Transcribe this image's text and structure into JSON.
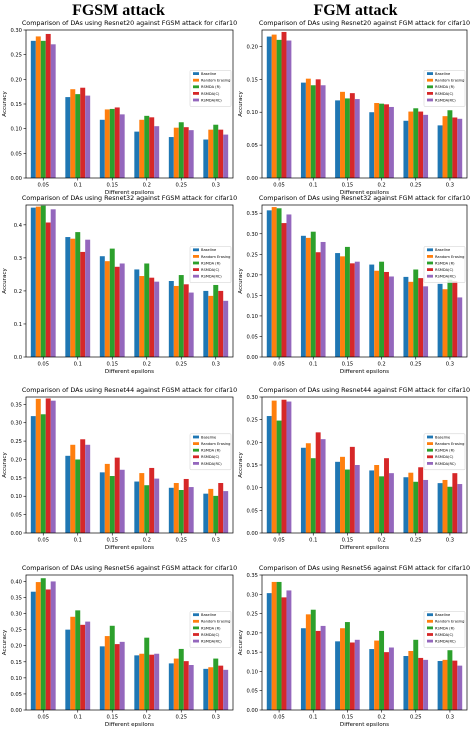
{
  "columns": [
    "FGSM attack",
    "FGM attack"
  ],
  "colors": {
    "Baseline": "#1f77b4",
    "Random Erasing": "#ff7f0e",
    "RSMDA (R)": "#2ca02c",
    "RSMDA(C)": "#d62728",
    "RSMDA(RC)": "#9467bd"
  },
  "chart_data": [
    {
      "type": "bar",
      "title": "Comparison of DAs using Resnet20 against FGSM attack for cifar10",
      "xlabel": "Different epsilons",
      "ylabel": "Accuracy",
      "categories": [
        "0.05",
        "0.1",
        "0.15",
        "0.2",
        "0.25",
        "0.3"
      ],
      "ylim": [
        0,
        0.3
      ],
      "yticks": [
        "0.00",
        "0.05",
        "0.10",
        "0.15",
        "0.20",
        "0.25",
        "0.30"
      ],
      "ytickvals": [
        0,
        0.05,
        0.1,
        0.15,
        0.2,
        0.25,
        0.3
      ],
      "legend": "right",
      "series": [
        {
          "name": "Baseline",
          "values": [
            0.278,
            0.164,
            0.118,
            0.094,
            0.083,
            0.078
          ]
        },
        {
          "name": "Random Erasing",
          "values": [
            0.287,
            0.18,
            0.139,
            0.118,
            0.102,
            0.098
          ]
        },
        {
          "name": "RSMDA (R)",
          "values": [
            0.278,
            0.17,
            0.14,
            0.126,
            0.113,
            0.108
          ]
        },
        {
          "name": "RSMDA(C)",
          "values": [
            0.292,
            0.183,
            0.143,
            0.123,
            0.103,
            0.098
          ]
        },
        {
          "name": "RSMDA(RC)",
          "values": [
            0.271,
            0.167,
            0.129,
            0.105,
            0.097,
            0.088
          ]
        }
      ]
    },
    {
      "type": "bar",
      "title": "Comparison of DAs using Resnet20 against FGM attack for cifar10",
      "xlabel": "Different epsilons",
      "ylabel": "Accuracy",
      "categories": [
        "0.05",
        "0.1",
        "0.15",
        "0.2",
        "0.25",
        "0.3"
      ],
      "ylim": [
        0,
        0.225
      ],
      "yticks": [
        "0.00",
        "0.05",
        "0.10",
        "0.15",
        "0.20"
      ],
      "ytickvals": [
        0,
        0.05,
        0.1,
        0.15,
        0.2
      ],
      "legend": "right",
      "series": [
        {
          "name": "Baseline",
          "values": [
            0.215,
            0.145,
            0.118,
            0.1,
            0.087,
            0.08
          ]
        },
        {
          "name": "Random Erasing",
          "values": [
            0.218,
            0.151,
            0.131,
            0.114,
            0.101,
            0.094
          ]
        },
        {
          "name": "RSMDA (R)",
          "values": [
            0.21,
            0.141,
            0.121,
            0.113,
            0.106,
            0.103
          ]
        },
        {
          "name": "RSMDA(C)",
          "values": [
            0.222,
            0.15,
            0.129,
            0.112,
            0.101,
            0.092
          ]
        },
        {
          "name": "RSMDA(RC)",
          "values": [
            0.209,
            0.141,
            0.12,
            0.108,
            0.096,
            0.09
          ]
        }
      ]
    },
    {
      "type": "bar",
      "title": "Comparison of DAs using Resnet32 against FGSM attack for cifar10",
      "xlabel": "Different epsilons",
      "ylabel": "Accuracy",
      "categories": [
        "0.05",
        "0.1",
        "0.15",
        "0.2",
        "0.25",
        "0.3"
      ],
      "ylim": [
        0,
        0.46
      ],
      "yticks": [
        "0.0",
        "0.1",
        "0.2",
        "0.3",
        "0.4"
      ],
      "ytickvals": [
        0,
        0.1,
        0.2,
        0.3,
        0.4
      ],
      "legend": "right",
      "series": [
        {
          "name": "Baseline",
          "values": [
            0.452,
            0.363,
            0.305,
            0.265,
            0.23,
            0.2
          ]
        },
        {
          "name": "Random Erasing",
          "values": [
            0.455,
            0.358,
            0.29,
            0.245,
            0.215,
            0.185
          ]
        },
        {
          "name": "RSMDA (R)",
          "values": [
            0.458,
            0.378,
            0.328,
            0.283,
            0.248,
            0.218
          ]
        },
        {
          "name": "RSMDA(C)",
          "values": [
            0.407,
            0.318,
            0.273,
            0.24,
            0.22,
            0.2
          ]
        },
        {
          "name": "RSMDA(RC)",
          "values": [
            0.447,
            0.355,
            0.283,
            0.228,
            0.195,
            0.17
          ]
        }
      ]
    },
    {
      "type": "bar",
      "title": "Comparison of DAs using Resnet32 against FGM attack for cifar10",
      "xlabel": "Different epsilons",
      "ylabel": "Accuracy",
      "categories": [
        "0.05",
        "0.1",
        "0.15",
        "0.2",
        "0.25",
        "0.3"
      ],
      "ylim": [
        0,
        0.37
      ],
      "yticks": [
        "0.00",
        "0.05",
        "0.10",
        "0.15",
        "0.20",
        "0.25",
        "0.30",
        "0.35"
      ],
      "ytickvals": [
        0,
        0.05,
        0.1,
        0.15,
        0.2,
        0.25,
        0.3,
        0.35
      ],
      "legend": "right",
      "series": [
        {
          "name": "Baseline",
          "values": [
            0.357,
            0.295,
            0.253,
            0.225,
            0.195,
            0.178
          ]
        },
        {
          "name": "Random Erasing",
          "values": [
            0.365,
            0.29,
            0.245,
            0.21,
            0.183,
            0.165
          ]
        },
        {
          "name": "RSMDA (R)",
          "values": [
            0.362,
            0.305,
            0.268,
            0.232,
            0.213,
            0.188
          ]
        },
        {
          "name": "RSMDA(C)",
          "values": [
            0.326,
            0.255,
            0.228,
            0.207,
            0.192,
            0.185
          ]
        },
        {
          "name": "RSMDA(RC)",
          "values": [
            0.347,
            0.28,
            0.232,
            0.196,
            0.172,
            0.145
          ]
        }
      ]
    },
    {
      "type": "bar",
      "title": "Comparison of DAs using Resnet44 against FGSM attack for cifar10",
      "xlabel": "Different epsilons",
      "ylabel": "Accuracy",
      "categories": [
        "0.05",
        "0.1",
        "0.15",
        "0.2",
        "0.25",
        "0.3"
      ],
      "ylim": [
        0,
        0.37
      ],
      "yticks": [
        "0.00",
        "0.05",
        "0.10",
        "0.15",
        "0.20",
        "0.25",
        "0.30",
        "0.35"
      ],
      "ytickvals": [
        0,
        0.05,
        0.1,
        0.15,
        0.2,
        0.25,
        0.3,
        0.35
      ],
      "legend": "right",
      "series": [
        {
          "name": "Baseline",
          "values": [
            0.318,
            0.21,
            0.165,
            0.14,
            0.123,
            0.107
          ]
        },
        {
          "name": "Random Erasing",
          "values": [
            0.365,
            0.24,
            0.188,
            0.163,
            0.136,
            0.12
          ]
        },
        {
          "name": "RSMDA (R)",
          "values": [
            0.323,
            0.2,
            0.155,
            0.13,
            0.117,
            0.101
          ]
        },
        {
          "name": "RSMDA(C)",
          "values": [
            0.366,
            0.255,
            0.205,
            0.177,
            0.147,
            0.136
          ]
        },
        {
          "name": "RSMDA(RC)",
          "values": [
            0.36,
            0.24,
            0.172,
            0.148,
            0.125,
            0.114
          ]
        }
      ]
    },
    {
      "type": "bar",
      "title": "Comparison of DAs using Resnet44 against FGM attack for cifar10",
      "xlabel": "Different epsilons",
      "ylabel": "Accuracy",
      "categories": [
        "0.05",
        "0.1",
        "0.15",
        "0.2",
        "0.25",
        "0.3"
      ],
      "ylim": [
        0,
        0.3
      ],
      "yticks": [
        "0.00",
        "0.05",
        "0.10",
        "0.15",
        "0.20",
        "0.25",
        "0.30"
      ],
      "ytickvals": [
        0,
        0.05,
        0.1,
        0.15,
        0.2,
        0.25,
        0.3
      ],
      "legend": "right",
      "series": [
        {
          "name": "Baseline",
          "values": [
            0.258,
            0.188,
            0.157,
            0.138,
            0.123,
            0.11
          ]
        },
        {
          "name": "Random Erasing",
          "values": [
            0.292,
            0.198,
            0.168,
            0.15,
            0.133,
            0.117
          ]
        },
        {
          "name": "RSMDA (R)",
          "values": [
            0.248,
            0.165,
            0.14,
            0.125,
            0.113,
            0.102
          ]
        },
        {
          "name": "RSMDA(C)",
          "values": [
            0.294,
            0.222,
            0.19,
            0.165,
            0.145,
            0.132
          ]
        },
        {
          "name": "RSMDA(RC)",
          "values": [
            0.29,
            0.207,
            0.15,
            0.132,
            0.117,
            0.108
          ]
        }
      ]
    },
    {
      "type": "bar",
      "title": "Comparison of DAs using Resnet56 against FGSM attack for cifar10",
      "xlabel": "Different epsilons",
      "ylabel": "Accuracy",
      "categories": [
        "0.05",
        "0.1",
        "0.15",
        "0.2",
        "0.25",
        "0.3"
      ],
      "ylim": [
        0,
        0.42
      ],
      "yticks": [
        "0.00",
        "0.05",
        "0.10",
        "0.15",
        "0.20",
        "0.25",
        "0.30",
        "0.35",
        "0.40"
      ],
      "ytickvals": [
        0,
        0.05,
        0.1,
        0.15,
        0.2,
        0.25,
        0.3,
        0.35,
        0.4
      ],
      "legend": "right",
      "series": [
        {
          "name": "Baseline",
          "values": [
            0.368,
            0.25,
            0.198,
            0.17,
            0.145,
            0.128
          ]
        },
        {
          "name": "Random Erasing",
          "values": [
            0.398,
            0.29,
            0.23,
            0.175,
            0.16,
            0.133
          ]
        },
        {
          "name": "RSMDA (R)",
          "values": [
            0.41,
            0.31,
            0.262,
            0.225,
            0.19,
            0.16
          ]
        },
        {
          "name": "RSMDA(C)",
          "values": [
            0.375,
            0.265,
            0.205,
            0.172,
            0.152,
            0.138
          ]
        },
        {
          "name": "RSMDA(RC)",
          "values": [
            0.4,
            0.275,
            0.212,
            0.175,
            0.14,
            0.125
          ]
        }
      ]
    },
    {
      "type": "bar",
      "title": "Comparison of DAs using Resnet56 against FGM attack for cifar10",
      "xlabel": "Different epsilons",
      "ylabel": "Accuracy",
      "categories": [
        "0.05",
        "0.1",
        "0.15",
        "0.2",
        "0.25",
        "0.3"
      ],
      "ylim": [
        0,
        0.35
      ],
      "yticks": [
        "0.00",
        "0.05",
        "0.10",
        "0.15",
        "0.20",
        "0.25",
        "0.30",
        "0.35"
      ],
      "ytickvals": [
        0,
        0.05,
        0.1,
        0.15,
        0.2,
        0.25,
        0.3,
        0.35
      ],
      "legend": "right",
      "series": [
        {
          "name": "Baseline",
          "values": [
            0.303,
            0.212,
            0.178,
            0.158,
            0.14,
            0.127
          ]
        },
        {
          "name": "Random Erasing",
          "values": [
            0.332,
            0.248,
            0.212,
            0.18,
            0.153,
            0.13
          ]
        },
        {
          "name": "RSMDA (R)",
          "values": [
            0.332,
            0.26,
            0.228,
            0.205,
            0.182,
            0.155
          ]
        },
        {
          "name": "RSMDA(C)",
          "values": [
            0.292,
            0.205,
            0.175,
            0.15,
            0.135,
            0.128
          ]
        },
        {
          "name": "RSMDA(RC)",
          "values": [
            0.31,
            0.218,
            0.182,
            0.162,
            0.13,
            0.115
          ]
        }
      ]
    }
  ]
}
